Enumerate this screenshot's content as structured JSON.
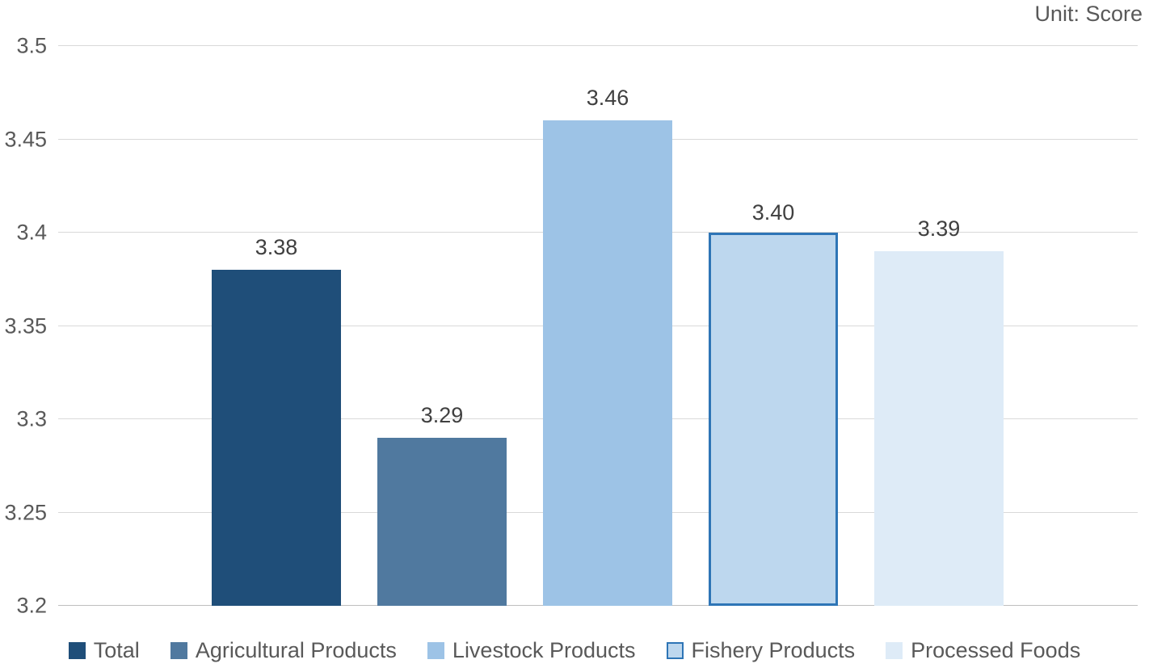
{
  "chart_data": {
    "type": "bar",
    "title": "",
    "xlabel": "",
    "ylabel": "",
    "unit_label": "Unit: Score",
    "categories": [
      "Total",
      "Agricultural Products",
      "Livestock Products",
      "Fishery Products",
      "Processed Foods"
    ],
    "values": [
      3.38,
      3.29,
      3.46,
      3.4,
      3.39
    ],
    "value_labels": [
      "3.38",
      "3.29",
      "3.46",
      "3.40",
      "3.39"
    ],
    "ylim": [
      3.2,
      3.5
    ],
    "yticks": [
      {
        "value": 3.2,
        "label": "3.2"
      },
      {
        "value": 3.25,
        "label": "3.25"
      },
      {
        "value": 3.3,
        "label": "3.3"
      },
      {
        "value": 3.35,
        "label": "3.35"
      },
      {
        "value": 3.4,
        "label": "3.4"
      },
      {
        "value": 3.45,
        "label": "3.45"
      },
      {
        "value": 3.5,
        "label": "3.5"
      }
    ],
    "grid": true,
    "legend_position": "bottom",
    "series_styles": [
      {
        "name": "Total",
        "fill": "#1F4E79",
        "border": null
      },
      {
        "name": "Agricultural Products",
        "fill": "#50799F",
        "border": null
      },
      {
        "name": "Livestock Products",
        "fill": "#9DC3E6",
        "border": null
      },
      {
        "name": "Fishery Products",
        "fill": "#BDD7EE",
        "border": "#2E75B6"
      },
      {
        "name": "Processed Foods",
        "fill": "#DEEBF7",
        "border": null
      }
    ],
    "colors": {
      "gridline": "#D9D9D9",
      "axis_line": "#BFBFBF",
      "tick_text": "#595959",
      "data_label_text": "#404040",
      "legend_text": "#595959"
    }
  }
}
